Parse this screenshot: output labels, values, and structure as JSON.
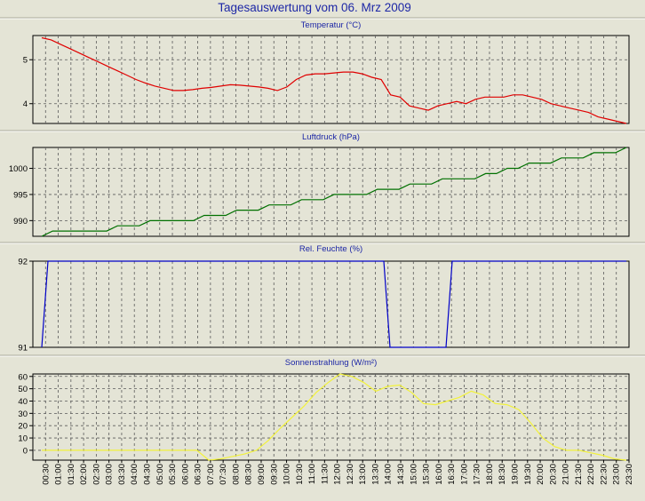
{
  "title": "Tagesauswertung vom 06. Mrz 2009",
  "time_labels": [
    "00:30",
    "01:00",
    "01:30",
    "02:00",
    "02:30",
    "03:00",
    "03:30",
    "04:00",
    "04:30",
    "05:00",
    "05:30",
    "06:00",
    "06:30",
    "07:00",
    "07:30",
    "08:00",
    "08:30",
    "09:00",
    "09:30",
    "10:00",
    "10:30",
    "11:00",
    "11:30",
    "12:00",
    "12:30",
    "13:00",
    "13:30",
    "14:00",
    "14:30",
    "15:00",
    "15:30",
    "16:00",
    "16:30",
    "17:00",
    "17:30",
    "18:00",
    "18:30",
    "19:00",
    "19:30",
    "20:00",
    "20:30",
    "21:00",
    "21:30",
    "22:00",
    "22:30",
    "23:00",
    "23:30"
  ],
  "colors": {
    "temperature": "#e00000",
    "pressure": "#007000",
    "humidity": "#0000c8",
    "solar": "#f2f23a",
    "panel_bg": "#e4e4d6",
    "title": "#1d27a6"
  },
  "chart_data": [
    {
      "type": "line",
      "title": "Temperatur (°C)",
      "grid": true,
      "ylim": [
        3.55,
        5.55
      ],
      "yticks": [
        4,
        5
      ],
      "series": [
        {
          "values": [
            5.5,
            5.45,
            5.35,
            5.25,
            5.15,
            5.05,
            4.95,
            4.85,
            4.75,
            4.65,
            4.55,
            4.47,
            4.4,
            4.35,
            4.3,
            4.3,
            4.32,
            4.35,
            4.37,
            4.4,
            4.43,
            4.42,
            4.4,
            4.38,
            4.35,
            4.3,
            4.38,
            4.55,
            4.65,
            4.68,
            4.68,
            4.7,
            4.72,
            4.72,
            4.68,
            4.6,
            4.55,
            4.2,
            4.15,
            3.95,
            3.9,
            3.85,
            3.95,
            4.0,
            4.05,
            4.0,
            4.1,
            4.15,
            4.15,
            4.15,
            4.2,
            4.2,
            4.15,
            4.1,
            4.0,
            3.95,
            3.9,
            3.85,
            3.8,
            3.7,
            3.65,
            3.6,
            3.55
          ]
        }
      ]
    },
    {
      "type": "line",
      "title": "Luftdruck (hPa)",
      "grid": true,
      "ylim": [
        987,
        1004
      ],
      "yticks": [
        990,
        995,
        1000
      ],
      "series": [
        {
          "values": [
            987,
            988,
            988,
            988,
            988,
            988,
            988,
            989,
            989,
            989,
            990,
            990,
            990,
            990,
            990,
            991,
            991,
            991,
            992,
            992,
            992,
            993,
            993,
            993,
            994,
            994,
            994,
            995,
            995,
            995,
            995,
            996,
            996,
            996,
            997,
            997,
            997,
            998,
            998,
            998,
            998,
            999,
            999,
            1000,
            1000,
            1001,
            1001,
            1001,
            1002,
            1002,
            1002,
            1003,
            1003,
            1003,
            1004
          ]
        }
      ]
    },
    {
      "type": "line",
      "title": "Rel. Feuchte (%)",
      "grid": true,
      "ylim": [
        91,
        92
      ],
      "yticks": [
        91,
        92
      ],
      "series": [
        {
          "values": [
            91,
            92,
            92,
            92,
            92,
            92,
            92,
            92,
            92,
            92,
            92,
            92,
            92,
            92,
            92,
            92,
            92,
            92,
            92,
            92,
            92,
            92,
            92,
            92,
            92,
            92,
            92,
            92,
            92,
            92,
            92,
            92,
            92,
            92,
            92,
            92,
            92,
            92,
            92,
            92,
            92,
            92,
            92,
            92,
            92,
            92,
            92,
            92,
            92,
            92,
            92,
            92,
            92,
            92,
            92,
            92,
            91,
            91,
            91,
            91,
            91,
            91,
            91,
            91,
            91,
            91,
            92,
            92,
            92,
            92,
            92,
            92,
            92,
            92,
            92,
            92,
            92,
            92,
            92,
            92,
            92,
            92,
            92,
            92,
            92,
            92,
            92,
            92,
            92,
            92,
            92,
            92,
            92,
            92,
            92
          ]
        }
      ]
    },
    {
      "type": "line",
      "title": "Sonnenstrahlung (W/m²)",
      "grid": true,
      "ylim": [
        -8,
        62
      ],
      "yticks": [
        0,
        10,
        20,
        30,
        40,
        50,
        60
      ],
      "series": [
        {
          "values": [
            0,
            0,
            0,
            0,
            0,
            0,
            0,
            0,
            0,
            0,
            0,
            0,
            0,
            0,
            -8,
            -7,
            -5,
            -3,
            0,
            8,
            18,
            27,
            36,
            47,
            55,
            62,
            60,
            55,
            48,
            52,
            53,
            47,
            38,
            37,
            40,
            43,
            48,
            45,
            38,
            37,
            33,
            22,
            10,
            3,
            0,
            0,
            -2,
            -4,
            -7,
            -8
          ]
        }
      ]
    }
  ]
}
